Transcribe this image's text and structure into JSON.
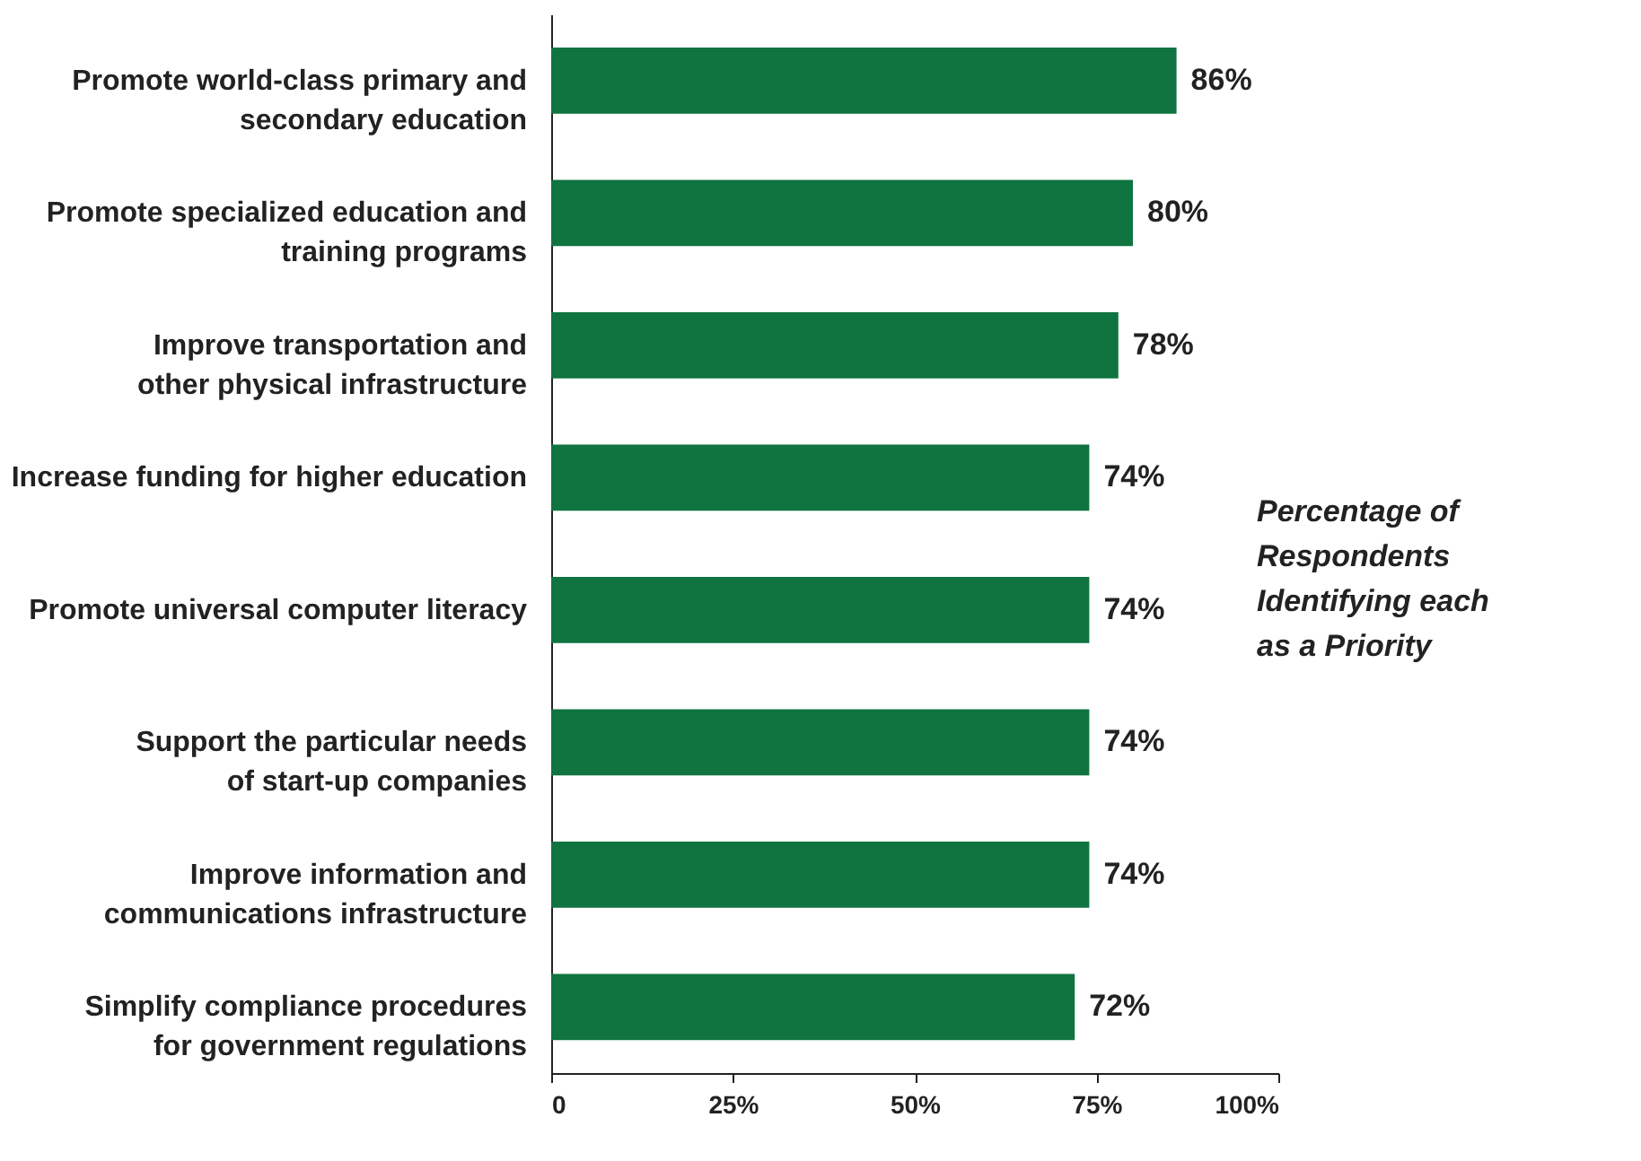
{
  "chart_data": {
    "type": "bar",
    "orientation": "horizontal",
    "categories": [
      "Promote world-class primary and\nsecondary education",
      "Promote specialized education and\ntraining programs",
      "Improve transportation and\nother physical infrastructure",
      "Increase funding for higher education",
      "Promote universal computer literacy",
      "Support the particular needs\nof start-up companies",
      "Improve information and\ncommunications infrastructure",
      "Simplify compliance procedures\nfor government regulations"
    ],
    "values": [
      86,
      80,
      78,
      74,
      74,
      74,
      74,
      72
    ],
    "value_labels": [
      "86%",
      "80%",
      "78%",
      "74%",
      "74%",
      "74%",
      "74%",
      "72%"
    ],
    "color": "#0f7440",
    "xlim": [
      0,
      100
    ],
    "xticks": [
      0,
      {
        "value": 25,
        "label": "25%"
      },
      {
        "value": 50,
        "label": "50%"
      },
      {
        "value": 75,
        "label": "75%"
      },
      {
        "value": 100,
        "label": "100%"
      }
    ],
    "annotations": [
      "Percentage of\nRespondents\nIdentifying each\nas a Priority"
    ],
    "grid": false
  }
}
